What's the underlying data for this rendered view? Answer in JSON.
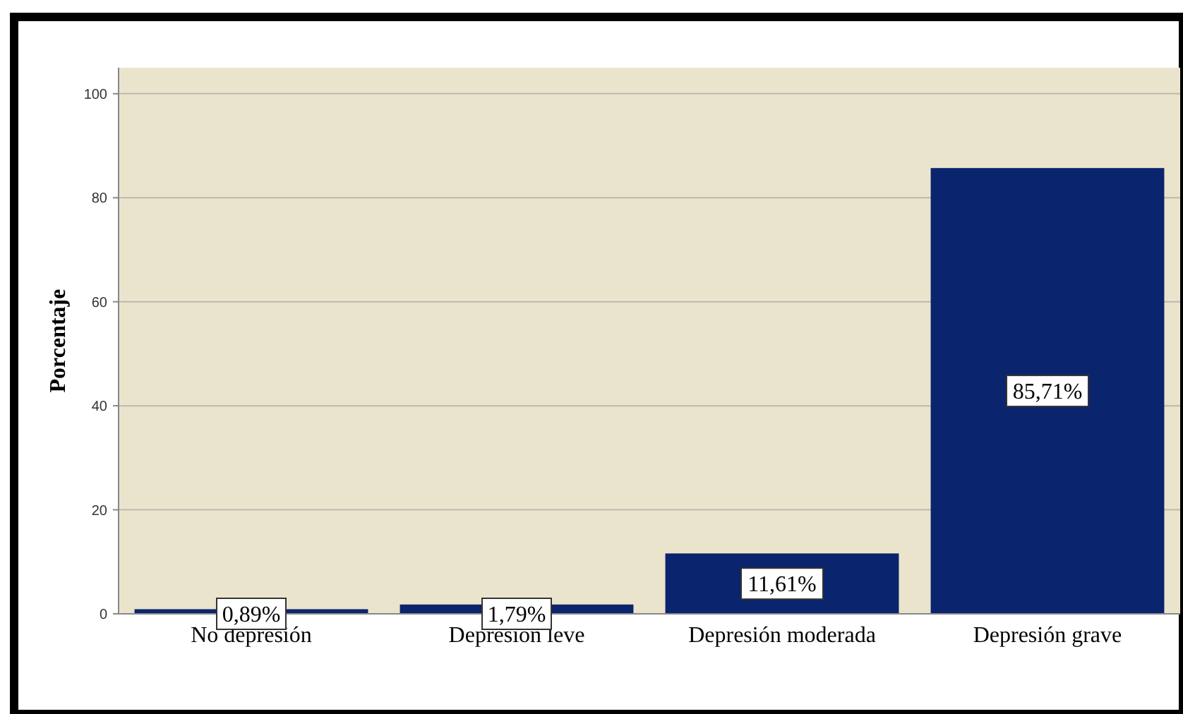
{
  "chart_data": {
    "type": "bar",
    "ylabel": "Porcentaje",
    "categories": [
      "No depresión",
      "Depresión leve",
      "Depresión moderada",
      "Depresión grave"
    ],
    "values": [
      0.89,
      1.79,
      11.61,
      85.71
    ],
    "color": "#0b246e",
    "value_labels": [
      "0,89%",
      "1,79%",
      "11,61%",
      "85,71%"
    ],
    "ylim": [
      0,
      105
    ],
    "yticks": [
      0,
      20,
      40,
      60,
      80,
      100
    ],
    "grid": "y"
  }
}
